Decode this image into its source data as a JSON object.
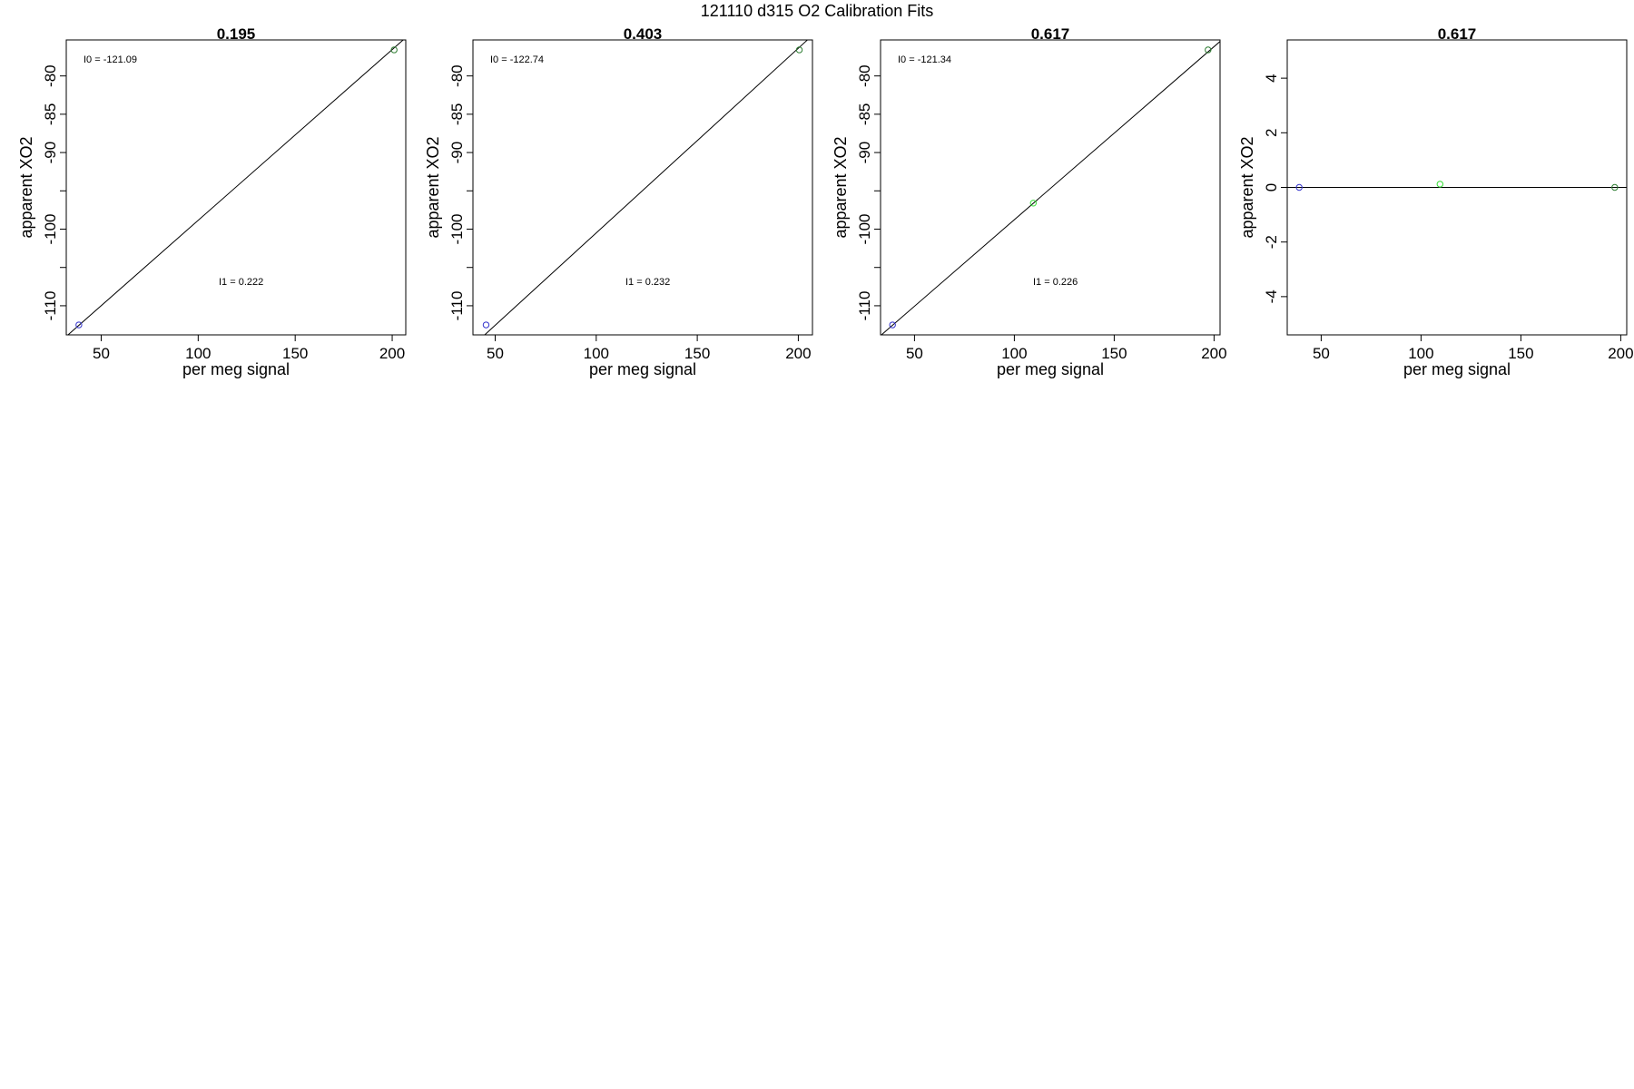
{
  "figure": {
    "title": "121110   d315   O2 Calibration Fits"
  },
  "colors": {
    "frame": "#000000",
    "fit_line": "#000000",
    "point_blue": "#3333cc",
    "point_green": "#2e7d32",
    "point_lime": "#33dd33"
  },
  "chart_data": [
    {
      "type": "scatter",
      "title": "0.195",
      "xlabel": "per meg signal",
      "ylabel": "apparent XO2",
      "xlim": [
        32,
        207
      ],
      "ylim": [
        -113.8,
        -75.3
      ],
      "xticks": [
        50,
        100,
        150,
        200
      ],
      "yticks": [
        -80,
        -85,
        -90,
        -95,
        -100,
        -105,
        -110
      ],
      "ytick_labels": [
        "-80",
        "-85",
        "-90",
        "",
        "-100",
        "",
        "-110"
      ],
      "fit_line": [
        [
          32,
          -114.0
        ],
        [
          207,
          -75.0
        ]
      ],
      "points": [
        {
          "x": 38.5,
          "y": -112.5,
          "color": "point_blue"
        },
        {
          "x": 201,
          "y": -76.6,
          "color": "point_green"
        }
      ],
      "annotations": [
        {
          "label": "I0 =",
          "value": "-121.09",
          "pos": "top-left"
        },
        {
          "label": "I1 =",
          "value": "0.222",
          "pos": "bottom-center"
        }
      ]
    },
    {
      "type": "scatter",
      "title": "0.403",
      "xlabel": "per meg signal",
      "ylabel": "apparent XO2",
      "xlim": [
        39,
        207
      ],
      "ylim": [
        -113.8,
        -75.3
      ],
      "xticks": [
        50,
        100,
        150,
        200
      ],
      "yticks": [
        -80,
        -85,
        -90,
        -95,
        -100,
        -105,
        -110
      ],
      "ytick_labels": [
        "-80",
        "-85",
        "-90",
        "",
        "-100",
        "",
        "-110"
      ],
      "fit_line": [
        [
          39,
          -115.2
        ],
        [
          207,
          -74.7
        ]
      ],
      "points": [
        {
          "x": 45.5,
          "y": -112.5,
          "color": "point_blue"
        },
        {
          "x": 200.5,
          "y": -76.6,
          "color": "point_green"
        }
      ],
      "annotations": [
        {
          "label": "I0 =",
          "value": "-122.74",
          "pos": "top-left"
        },
        {
          "label": "I1 =",
          "value": "0.232",
          "pos": "bottom-center"
        }
      ]
    },
    {
      "type": "scatter",
      "title": "0.617",
      "xlabel": "per meg signal",
      "ylabel": "apparent XO2",
      "xlim": [
        33,
        203
      ],
      "ylim": [
        -113.8,
        -75.3
      ],
      "xticks": [
        50,
        100,
        150,
        200
      ],
      "yticks": [
        -80,
        -85,
        -90,
        -95,
        -100,
        -105,
        -110
      ],
      "ytick_labels": [
        "-80",
        "-85",
        "-90",
        "",
        "-100",
        "",
        "-110"
      ],
      "fit_line": [
        [
          33,
          -113.9
        ],
        [
          203,
          -75.5
        ]
      ],
      "points": [
        {
          "x": 39,
          "y": -112.5,
          "color": "point_blue"
        },
        {
          "x": 109.5,
          "y": -96.6,
          "color": "point_lime"
        },
        {
          "x": 197,
          "y": -76.6,
          "color": "point_green"
        }
      ],
      "annotations": [
        {
          "label": "I0 =",
          "value": "-121.34",
          "pos": "top-left"
        },
        {
          "label": "I1 =",
          "value": "0.226",
          "pos": "bottom-center"
        }
      ]
    },
    {
      "type": "scatter",
      "title": "0.617",
      "xlabel": "per meg signal",
      "ylabel": "apparent XO2",
      "xlim": [
        33,
        203
      ],
      "ylim": [
        -5.4,
        5.4
      ],
      "xticks": [
        50,
        100,
        150,
        200
      ],
      "yticks": [
        4,
        2,
        0,
        -2,
        -4
      ],
      "ytick_labels": [
        "4",
        "2",
        "0",
        "-2",
        "-4"
      ],
      "fit_line": [
        [
          33,
          0
        ],
        [
          203,
          0
        ]
      ],
      "points": [
        {
          "x": 39,
          "y": 0.0,
          "color": "point_blue"
        },
        {
          "x": 109.5,
          "y": 0.12,
          "color": "point_lime"
        },
        {
          "x": 197,
          "y": 0.0,
          "color": "point_green"
        }
      ],
      "annotations": []
    }
  ]
}
